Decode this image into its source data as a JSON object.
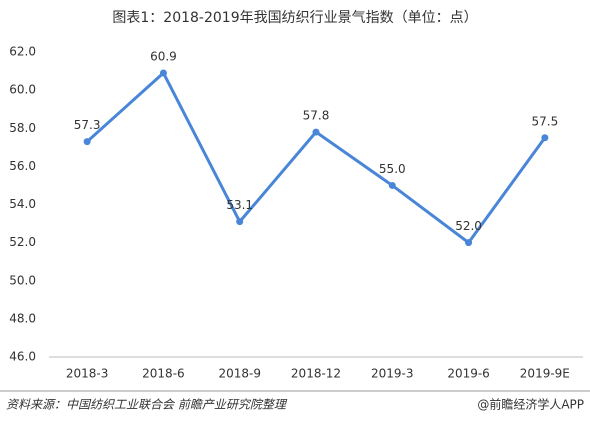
{
  "chart_data": {
    "type": "line",
    "title": "图表1：2018-2019年我国纺织行业景气指数（单位：点）",
    "categories": [
      "2018-3",
      "2018-6",
      "2018-9",
      "2018-12",
      "2019-3",
      "2019-6",
      "2019-9E"
    ],
    "values": [
      57.3,
      60.9,
      53.1,
      57.8,
      55.0,
      52.0,
      57.5
    ],
    "value_labels": [
      "57.3",
      "60.9",
      "53.1",
      "57.8",
      "55.0",
      "52.0",
      "57.5"
    ],
    "color": "#4a86d8",
    "ylim": [
      46,
      62
    ],
    "yticks": [
      {
        "value": 46,
        "label": "46.0"
      },
      {
        "value": 48,
        "label": "48.0"
      },
      {
        "value": 50,
        "label": "50.0"
      },
      {
        "value": 52,
        "label": "52.0"
      },
      {
        "value": 54,
        "label": "54.0"
      },
      {
        "value": 56,
        "label": "56.0"
      },
      {
        "value": 58,
        "label": "58.0"
      },
      {
        "value": 60,
        "label": "60.0"
      },
      {
        "value": 62,
        "label": "62.0"
      }
    ],
    "grid": false,
    "source": "资料来源：中国纺织工业联合会 前瞻产业研究院整理",
    "credit": "@前瞻经济学人APP"
  }
}
